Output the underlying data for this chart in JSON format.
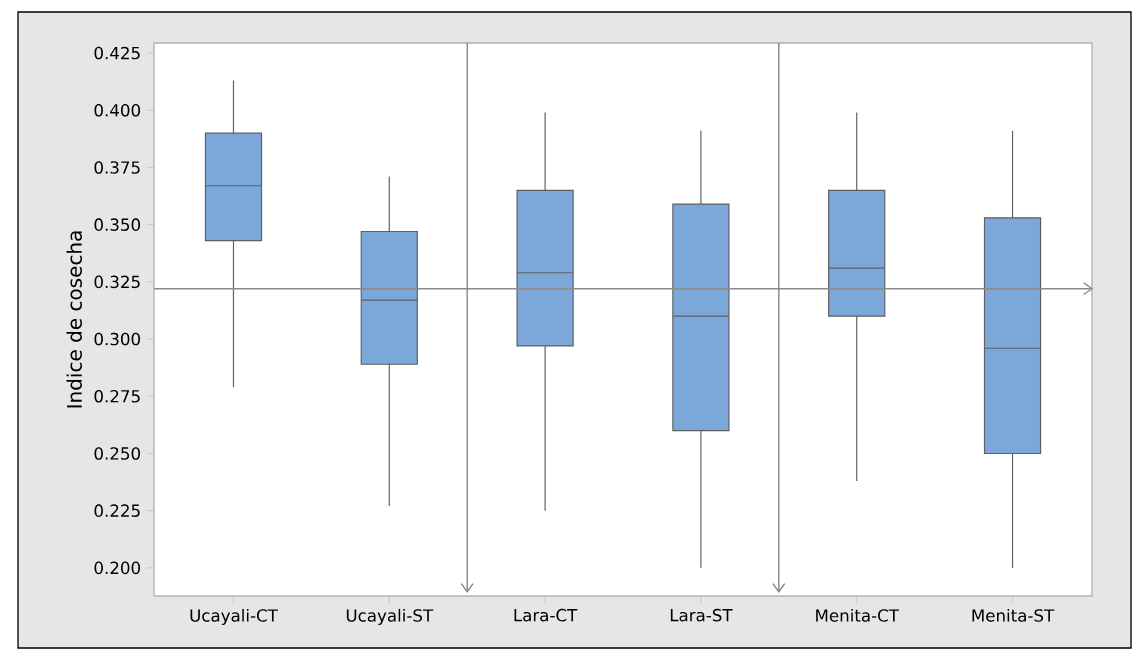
{
  "chart_data": {
    "type": "box",
    "ylabel": "Indice de cosecha",
    "categories": [
      "Ucayali-CT",
      "Ucayali-ST",
      "Lara-CT",
      "Lara-ST",
      "Menita-CT",
      "Menita-ST"
    ],
    "color": "#7ba7d9",
    "boxes": [
      {
        "low": 0.279,
        "q1": 0.343,
        "median": 0.367,
        "q3": 0.39,
        "high": 0.413
      },
      {
        "low": 0.227,
        "q1": 0.289,
        "median": 0.317,
        "q3": 0.347,
        "high": 0.371
      },
      {
        "low": 0.225,
        "q1": 0.297,
        "median": 0.329,
        "q3": 0.365,
        "high": 0.399
      },
      {
        "low": 0.2,
        "q1": 0.26,
        "median": 0.31,
        "q3": 0.359,
        "high": 0.391
      },
      {
        "low": 0.238,
        "q1": 0.31,
        "median": 0.331,
        "q3": 0.365,
        "high": 0.399
      },
      {
        "low": 0.2,
        "q1": 0.25,
        "median": 0.296,
        "q3": 0.353,
        "high": 0.391
      }
    ],
    "ylim": [
      0.1877,
      0.4294
    ],
    "yticks": [
      {
        "value": 0.2,
        "label": "0.200"
      },
      {
        "value": 0.225,
        "label": "0.225"
      },
      {
        "value": 0.25,
        "label": "0.250"
      },
      {
        "value": 0.275,
        "label": "0.275"
      },
      {
        "value": 0.3,
        "label": "0.300"
      },
      {
        "value": 0.325,
        "label": "0.325"
      },
      {
        "value": 0.35,
        "label": "0.350"
      },
      {
        "value": 0.375,
        "label": "0.375"
      },
      {
        "value": 0.4,
        "label": "0.400"
      },
      {
        "value": 0.425,
        "label": "0.425"
      }
    ],
    "ref_lines": [
      {
        "axis": "y",
        "value": 0.322,
        "color": "#8c8c8c"
      }
    ]
  }
}
